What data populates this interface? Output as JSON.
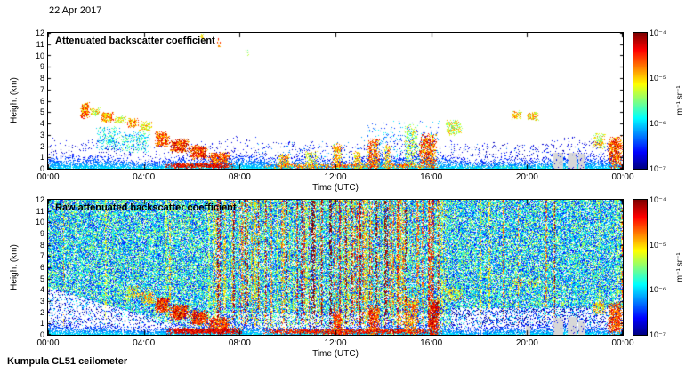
{
  "header": {
    "date": "22 Apr 2017"
  },
  "footer": {
    "label": "Kumpula CL51 ceilometer"
  },
  "colorbar": {
    "unit": "m⁻¹ sr⁻¹",
    "tick_labels": [
      "10⁻⁴",
      "10⁻⁵",
      "10⁻⁶",
      "10⁻⁷"
    ],
    "scale": "log",
    "min": 1e-07,
    "max": 0.0001,
    "palette": "jet"
  },
  "chart_data": [
    {
      "type": "heatmap",
      "panel": "top",
      "title": "Attenuated backscatter coefficient",
      "xlabel": "Time (UTC)",
      "ylabel": "Height (km)",
      "x_tick_labels": [
        "00:00",
        "04:00",
        "08:00",
        "12:00",
        "16:00",
        "20:00",
        "00:00"
      ],
      "x_range_hours": [
        0,
        24
      ],
      "y_ticks": [
        0,
        1,
        2,
        3,
        4,
        5,
        6,
        7,
        8,
        9,
        10,
        11,
        12
      ],
      "ylim": [
        0,
        12
      ],
      "value_scale": {
        "type": "log10",
        "min_exp": -7,
        "max_exp": -4,
        "unit": "m⁻¹ sr⁻¹"
      },
      "background": "#ffffff",
      "noise_field": null,
      "aerosol_layer": {
        "t": [
          0,
          24
        ],
        "top_km_mean": 1.35,
        "top_km_var": 0.45,
        "v": [
          -7.0,
          -5.9
        ]
      },
      "features": [
        {
          "t": [
            1.35,
            1.75
          ],
          "h": [
            4.4,
            5.9
          ],
          "v": [
            -5.3,
            -4.2
          ],
          "d": 0.85
        },
        {
          "t": [
            1.75,
            2.2
          ],
          "h": [
            4.6,
            5.4
          ],
          "v": [
            -5.6,
            -4.6
          ],
          "d": 0.7
        },
        {
          "t": [
            2.2,
            2.75
          ],
          "h": [
            4.0,
            5.0
          ],
          "v": [
            -5.4,
            -4.4
          ],
          "d": 0.8
        },
        {
          "t": [
            2.75,
            3.3
          ],
          "h": [
            3.9,
            4.7
          ],
          "v": [
            -5.6,
            -4.8
          ],
          "d": 0.7
        },
        {
          "t": [
            3.3,
            3.8
          ],
          "h": [
            3.6,
            4.5
          ],
          "v": [
            -5.3,
            -4.4
          ],
          "d": 0.8
        },
        {
          "t": [
            3.8,
            4.35
          ],
          "h": [
            3.3,
            4.2
          ],
          "v": [
            -5.5,
            -4.6
          ],
          "d": 0.7
        },
        {
          "t": [
            2.0,
            3.0
          ],
          "h": [
            1.6,
            3.8
          ],
          "v": [
            -6.4,
            -5.4
          ],
          "d": 0.35
        },
        {
          "t": [
            3.0,
            4.3
          ],
          "h": [
            1.4,
            3.3
          ],
          "v": [
            -6.4,
            -5.3
          ],
          "d": 0.4
        },
        {
          "t": [
            4.45,
            5.1
          ],
          "h": [
            1.9,
            3.3
          ],
          "v": [
            -5.1,
            -4.1
          ],
          "d": 0.9
        },
        {
          "t": [
            5.1,
            5.9
          ],
          "h": [
            1.3,
            2.7
          ],
          "v": [
            -5.0,
            -4.0
          ],
          "d": 0.9
        },
        {
          "t": [
            5.9,
            6.7
          ],
          "h": [
            0.8,
            2.1
          ],
          "v": [
            -5.0,
            -4.0
          ],
          "d": 0.9
        },
        {
          "t": [
            6.7,
            7.6
          ],
          "h": [
            0.4,
            1.5
          ],
          "v": [
            -5.1,
            -4.1
          ],
          "d": 0.85
        },
        {
          "t": [
            4.9,
            7.8
          ],
          "h": [
            0.0,
            0.55
          ],
          "v": [
            -4.7,
            -4.0
          ],
          "d": 0.9
        },
        {
          "t": [
            7.05,
            7.25
          ],
          "h": [
            10.6,
            11.5
          ],
          "v": [
            -5.0,
            -4.4
          ],
          "d": 0.5
        },
        {
          "t": [
            8.2,
            8.45
          ],
          "h": [
            9.9,
            10.7
          ],
          "v": [
            -5.6,
            -4.9
          ],
          "d": 0.35
        },
        {
          "t": [
            6.35,
            6.5
          ],
          "h": [
            11.4,
            12.0
          ],
          "v": [
            -5.4,
            -4.8
          ],
          "d": 0.3
        },
        {
          "t": [
            9.6,
            10.1
          ],
          "h": [
            0.0,
            1.3
          ],
          "v": [
            -5.5,
            -4.5
          ],
          "d": 0.75
        },
        {
          "t": [
            10.75,
            11.25
          ],
          "h": [
            0.0,
            1.6
          ],
          "v": [
            -5.6,
            -4.7
          ],
          "d": 0.6
        },
        {
          "t": [
            11.85,
            12.3
          ],
          "h": [
            0.0,
            2.3
          ],
          "v": [
            -5.4,
            -4.4
          ],
          "d": 0.7
        },
        {
          "t": [
            12.75,
            13.1
          ],
          "h": [
            0.0,
            1.6
          ],
          "v": [
            -5.5,
            -4.6
          ],
          "d": 0.7
        },
        {
          "t": [
            13.35,
            13.85
          ],
          "h": [
            0.0,
            2.7
          ],
          "v": [
            -5.2,
            -4.2
          ],
          "d": 0.8
        },
        {
          "t": [
            14.0,
            14.35
          ],
          "h": [
            0.0,
            2.1
          ],
          "v": [
            -5.4,
            -4.5
          ],
          "d": 0.7
        },
        {
          "t": [
            14.85,
            15.45
          ],
          "h": [
            0.0,
            3.9
          ],
          "v": [
            -5.8,
            -4.8
          ],
          "d": 0.5
        },
        {
          "t": [
            15.5,
            16.25
          ],
          "h": [
            0.0,
            3.1
          ],
          "v": [
            -5.2,
            -4.1
          ],
          "d": 0.8
        },
        {
          "t": [
            9.0,
            16.4
          ],
          "h": [
            0.0,
            0.5
          ],
          "v": [
            -5.2,
            -4.3
          ],
          "d": 0.6
        },
        {
          "t": [
            16.6,
            17.3
          ],
          "h": [
            2.9,
            4.3
          ],
          "v": [
            -5.7,
            -4.7
          ],
          "d": 0.6
        },
        {
          "t": [
            19.35,
            19.8
          ],
          "h": [
            4.3,
            5.15
          ],
          "v": [
            -5.5,
            -4.6
          ],
          "d": 0.7
        },
        {
          "t": [
            20.0,
            20.5
          ],
          "h": [
            4.2,
            5.05
          ],
          "v": [
            -5.5,
            -4.6
          ],
          "d": 0.7
        },
        {
          "t": [
            22.75,
            23.3
          ],
          "h": [
            1.7,
            3.1
          ],
          "v": [
            -5.6,
            -4.7
          ],
          "d": 0.6
        },
        {
          "t": [
            23.35,
            24.0
          ],
          "h": [
            0.0,
            2.9
          ],
          "v": [
            -5.1,
            -4.1
          ],
          "d": 0.8
        },
        {
          "t": [
            17.0,
            22.6
          ],
          "h": [
            0.0,
            0.35
          ],
          "v": [
            -6.2,
            -5.4
          ],
          "d": 0.3
        },
        {
          "t": [
            13.0,
            16.5
          ],
          "h": [
            0.0,
            4.2
          ],
          "v": [
            -6.6,
            -5.8
          ],
          "d": 0.08
        },
        {
          "t": [
            8.0,
            13.0
          ],
          "h": [
            0.0,
            2.4
          ],
          "v": [
            -6.7,
            -6.0
          ],
          "d": 0.06
        },
        {
          "t": [
            16.5,
            24.0
          ],
          "h": [
            0.0,
            2.2
          ],
          "v": [
            -6.9,
            -6.2
          ],
          "d": 0.06
        }
      ],
      "gray_bands": [
        {
          "t": [
            21.1,
            21.5
          ],
          "h": [
            0,
            1.4
          ]
        },
        {
          "t": [
            21.7,
            22.05
          ],
          "h": [
            0,
            1.45
          ]
        },
        {
          "t": [
            22.15,
            22.4
          ],
          "h": [
            0,
            1.3
          ]
        }
      ]
    },
    {
      "type": "heatmap",
      "panel": "bottom",
      "title": "Raw attenuated backscatter coefficient",
      "xlabel": "Time (UTC)",
      "ylabel": "Height (km)",
      "x_tick_labels": [
        "00:00",
        "04:00",
        "08:00",
        "12:00",
        "16:00",
        "20:00",
        "00:00"
      ],
      "x_range_hours": [
        0,
        24
      ],
      "y_ticks": [
        0,
        1,
        2,
        3,
        4,
        5,
        6,
        7,
        8,
        9,
        10,
        11,
        12
      ],
      "ylim": [
        0,
        12
      ],
      "value_scale": {
        "type": "log10",
        "min_exp": -7,
        "max_exp": -4,
        "unit": "m⁻¹ sr⁻¹"
      },
      "background": "#ffffff",
      "noise_field": {
        "coverage": 0.8,
        "v_base": -5.95,
        "v_spread": 0.75,
        "streaks": {
          "count": 160,
          "t_focus": [
            6.8,
            16.6
          ],
          "v": [
            -5.4,
            -4.2
          ]
        },
        "strong_streak_times": [
          12.15,
          12.95,
          14.55,
          15.85,
          16.05
        ],
        "sparse_low_left": {
          "t": [
            0,
            5.6
          ],
          "h_boundary_start": 4.2,
          "h_boundary_slope": -0.62
        },
        "sparse_low_right": {
          "t_after": 16.8,
          "h_below": 2.4
        }
      },
      "aerosol_layer": {
        "t": [
          0,
          24
        ],
        "top_km_mean": 1.15,
        "top_km_var": 0.45,
        "v": [
          -7.0,
          -6.0
        ]
      },
      "features": [
        {
          "t": [
            3.2,
            3.9
          ],
          "h": [
            3.2,
            4.4
          ],
          "v": [
            -5.6,
            -4.7
          ],
          "d": 0.5
        },
        {
          "t": [
            3.9,
            4.45
          ],
          "h": [
            2.6,
            3.9
          ],
          "v": [
            -5.4,
            -4.5
          ],
          "d": 0.6
        },
        {
          "t": [
            4.45,
            5.1
          ],
          "h": [
            1.9,
            3.4
          ],
          "v": [
            -4.9,
            -4.0
          ],
          "d": 0.9
        },
        {
          "t": [
            5.1,
            5.9
          ],
          "h": [
            1.3,
            2.8
          ],
          "v": [
            -4.9,
            -4.0
          ],
          "d": 0.9
        },
        {
          "t": [
            5.9,
            6.7
          ],
          "h": [
            0.8,
            2.2
          ],
          "v": [
            -4.9,
            -4.0
          ],
          "d": 0.9
        },
        {
          "t": [
            6.7,
            7.6
          ],
          "h": [
            0.4,
            1.6
          ],
          "v": [
            -5.0,
            -4.1
          ],
          "d": 0.85
        },
        {
          "t": [
            4.9,
            8.2
          ],
          "h": [
            0.0,
            0.6
          ],
          "v": [
            -4.6,
            -4.0
          ],
          "d": 0.92
        },
        {
          "t": [
            9.0,
            16.5
          ],
          "h": [
            0.0,
            0.55
          ],
          "v": [
            -4.8,
            -4.0
          ],
          "d": 0.85
        },
        {
          "t": [
            11.85,
            12.3
          ],
          "h": [
            0.0,
            2.3
          ],
          "v": [
            -5.0,
            -4.2
          ],
          "d": 0.75
        },
        {
          "t": [
            13.35,
            13.85
          ],
          "h": [
            0.0,
            2.7
          ],
          "v": [
            -5.0,
            -4.1
          ],
          "d": 0.8
        },
        {
          "t": [
            14.85,
            15.45
          ],
          "h": [
            0.0,
            3.5
          ],
          "v": [
            -5.2,
            -4.4
          ],
          "d": 0.6
        },
        {
          "t": [
            15.85,
            16.35
          ],
          "h": [
            0.0,
            3.2
          ],
          "v": [
            -4.8,
            -4.0
          ],
          "d": 0.85
        },
        {
          "t": [
            16.6,
            17.3
          ],
          "h": [
            2.9,
            4.3
          ],
          "v": [
            -5.5,
            -4.7
          ],
          "d": 0.5
        },
        {
          "t": [
            19.35,
            19.8
          ],
          "h": [
            4.3,
            5.15
          ],
          "v": [
            -5.4,
            -4.6
          ],
          "d": 0.55
        },
        {
          "t": [
            20.0,
            20.5
          ],
          "h": [
            4.2,
            5.05
          ],
          "v": [
            -5.4,
            -4.6
          ],
          "d": 0.55
        },
        {
          "t": [
            22.75,
            23.3
          ],
          "h": [
            1.7,
            3.1
          ],
          "v": [
            -5.4,
            -4.6
          ],
          "d": 0.6
        },
        {
          "t": [
            23.35,
            24.0
          ],
          "h": [
            0.0,
            2.9
          ],
          "v": [
            -5.0,
            -4.1
          ],
          "d": 0.8
        }
      ],
      "gray_bands": [
        {
          "t": [
            19.95,
            20.15
          ],
          "h": [
            0,
            0.8
          ]
        },
        {
          "t": [
            21.1,
            21.5
          ],
          "h": [
            0,
            1.5
          ]
        },
        {
          "t": [
            21.7,
            22.05
          ],
          "h": [
            0,
            1.6
          ]
        },
        {
          "t": [
            22.15,
            22.45
          ],
          "h": [
            0,
            1.2
          ]
        }
      ]
    }
  ]
}
